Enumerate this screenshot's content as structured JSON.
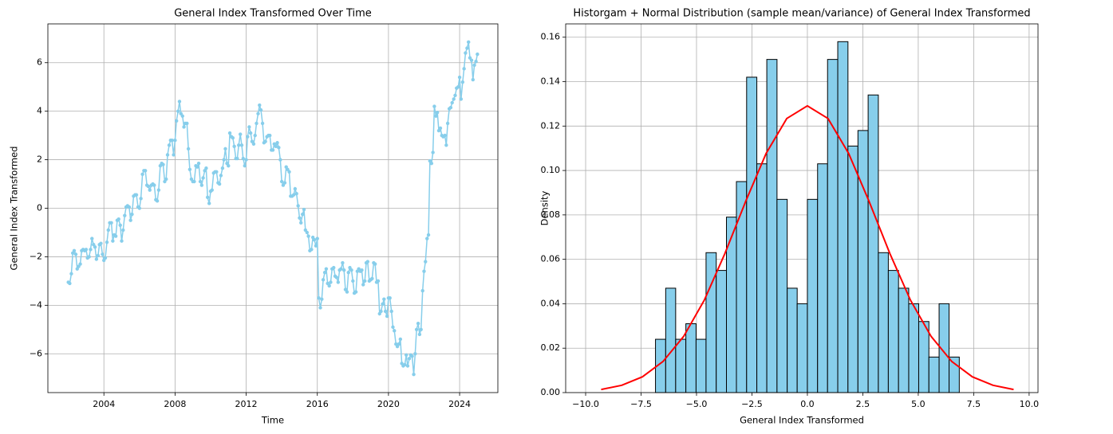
{
  "chart_data": [
    {
      "type": "line",
      "title": "General Index Transformed Over Time",
      "x_label": "Time",
      "y_label": "General Index Transformed",
      "color": "#87ceeb",
      "grid": true,
      "xlim": [
        2000.85,
        2026.15
      ],
      "xticks": [
        2004,
        2008,
        2012,
        2016,
        2020,
        2024
      ],
      "ylim": [
        -7.6,
        7.6
      ],
      "yticks": [
        {
          "value": -6,
          "label": "−6"
        },
        {
          "value": -4,
          "label": "−4"
        },
        {
          "value": -2,
          "label": "−2"
        },
        0,
        2,
        4,
        6
      ],
      "x": [
        2002.0,
        2002.08,
        2002.17,
        2002.25,
        2002.33,
        2002.42,
        2002.5,
        2002.58,
        2002.67,
        2002.75,
        2002.83,
        2002.92,
        2003.0,
        2003.08,
        2003.17,
        2003.25,
        2003.33,
        2003.42,
        2003.5,
        2003.58,
        2003.67,
        2003.75,
        2003.83,
        2003.92,
        2004.0,
        2004.08,
        2004.17,
        2004.25,
        2004.33,
        2004.42,
        2004.5,
        2004.58,
        2004.67,
        2004.75,
        2004.83,
        2004.92,
        2005.0,
        2005.08,
        2005.17,
        2005.25,
        2005.33,
        2005.42,
        2005.5,
        2005.58,
        2005.67,
        2005.75,
        2005.83,
        2005.92,
        2006.0,
        2006.08,
        2006.17,
        2006.25,
        2006.33,
        2006.42,
        2006.5,
        2006.58,
        2006.67,
        2006.75,
        2006.83,
        2006.92,
        2007.0,
        2007.08,
        2007.17,
        2007.25,
        2007.33,
        2007.42,
        2007.5,
        2007.58,
        2007.67,
        2007.75,
        2007.83,
        2007.92,
        2008.0,
        2008.08,
        2008.17,
        2008.25,
        2008.33,
        2008.42,
        2008.5,
        2008.58,
        2008.67,
        2008.75,
        2008.83,
        2008.92,
        2009.0,
        2009.08,
        2009.17,
        2009.25,
        2009.33,
        2009.42,
        2009.5,
        2009.58,
        2009.67,
        2009.75,
        2009.83,
        2009.92,
        2010.0,
        2010.08,
        2010.17,
        2010.25,
        2010.33,
        2010.42,
        2010.5,
        2010.58,
        2010.67,
        2010.75,
        2010.83,
        2010.92,
        2011.0,
        2011.08,
        2011.17,
        2011.25,
        2011.33,
        2011.42,
        2011.5,
        2011.58,
        2011.67,
        2011.75,
        2011.83,
        2011.92,
        2012.0,
        2012.08,
        2012.17,
        2012.25,
        2012.33,
        2012.42,
        2012.5,
        2012.58,
        2012.67,
        2012.75,
        2012.83,
        2012.92,
        2013.0,
        2013.08,
        2013.17,
        2013.25,
        2013.33,
        2013.42,
        2013.5,
        2013.58,
        2013.67,
        2013.75,
        2013.83,
        2013.92,
        2014.0,
        2014.08,
        2014.17,
        2014.25,
        2014.33,
        2014.42,
        2014.5,
        2014.58,
        2014.67,
        2014.75,
        2014.83,
        2014.92,
        2015.0,
        2015.08,
        2015.17,
        2015.25,
        2015.33,
        2015.42,
        2015.5,
        2015.58,
        2015.67,
        2015.75,
        2015.83,
        2015.92,
        2016.0,
        2016.08,
        2016.17,
        2016.25,
        2016.33,
        2016.42,
        2016.5,
        2016.58,
        2016.67,
        2016.75,
        2016.83,
        2016.92,
        2017.0,
        2017.08,
        2017.17,
        2017.25,
        2017.33,
        2017.42,
        2017.5,
        2017.58,
        2017.67,
        2017.75,
        2017.83,
        2017.92,
        2018.0,
        2018.08,
        2018.17,
        2018.25,
        2018.33,
        2018.42,
        2018.5,
        2018.58,
        2018.67,
        2018.75,
        2018.83,
        2018.92,
        2019.0,
        2019.08,
        2019.17,
        2019.25,
        2019.33,
        2019.42,
        2019.5,
        2019.58,
        2019.67,
        2019.75,
        2019.83,
        2019.92,
        2020.0,
        2020.08,
        2020.17,
        2020.25,
        2020.33,
        2020.42,
        2020.5,
        2020.58,
        2020.67,
        2020.75,
        2020.83,
        2020.92,
        2021.0,
        2021.08,
        2021.17,
        2021.25,
        2021.33,
        2021.42,
        2021.5,
        2021.58,
        2021.67,
        2021.75,
        2021.83,
        2021.92,
        2022.0,
        2022.08,
        2022.17,
        2022.25,
        2022.33,
        2022.42,
        2022.5,
        2022.58,
        2022.67,
        2022.75,
        2022.83,
        2022.92,
        2023.0,
        2023.08,
        2023.17,
        2023.25,
        2023.33,
        2023.42,
        2023.5,
        2023.58,
        2023.67,
        2023.75,
        2023.83,
        2023.92,
        2024.0,
        2024.08,
        2024.17,
        2024.25,
        2024.33,
        2024.42,
        2024.5,
        2024.58,
        2024.67,
        2024.75,
        2024.83,
        2024.92,
        2025.0
      ],
      "values": [
        -3.05,
        -3.1,
        -2.7,
        -1.85,
        -1.75,
        -1.9,
        -2.5,
        -2.4,
        -2.3,
        -1.75,
        -1.7,
        -1.75,
        -1.7,
        -2.05,
        -2.0,
        -1.7,
        -1.25,
        -1.5,
        -1.6,
        -2.1,
        -1.95,
        -1.5,
        -1.45,
        -1.9,
        -2.15,
        -2.05,
        -1.4,
        -0.9,
        -0.6,
        -0.6,
        -1.35,
        -1.1,
        -1.15,
        -0.5,
        -0.45,
        -0.7,
        -1.35,
        -0.9,
        -0.3,
        0.05,
        0.1,
        0.05,
        -0.5,
        -0.25,
        0.5,
        0.55,
        0.55,
        0.05,
        0.0,
        0.4,
        1.4,
        1.55,
        1.55,
        0.95,
        0.9,
        0.75,
        0.95,
        1.0,
        0.95,
        0.35,
        0.3,
        0.75,
        1.75,
        1.85,
        1.8,
        1.1,
        1.2,
        2.2,
        2.6,
        2.8,
        2.8,
        2.2,
        2.8,
        3.6,
        4.0,
        4.4,
        3.9,
        3.8,
        3.35,
        3.5,
        3.5,
        2.45,
        1.6,
        1.2,
        1.1,
        1.1,
        1.75,
        1.7,
        1.85,
        1.1,
        0.95,
        1.25,
        1.55,
        1.65,
        0.45,
        0.2,
        0.7,
        0.75,
        1.45,
        1.5,
        1.5,
        1.05,
        1.0,
        1.35,
        1.65,
        2.0,
        2.45,
        1.85,
        1.75,
        3.1,
        2.95,
        2.9,
        2.55,
        2.05,
        2.05,
        2.6,
        3.05,
        2.6,
        2.05,
        1.75,
        2.0,
        2.95,
        3.35,
        3.1,
        2.75,
        2.65,
        3.0,
        3.5,
        3.9,
        4.25,
        4.05,
        3.5,
        2.7,
        2.75,
        2.95,
        3.0,
        3.0,
        2.4,
        2.4,
        2.65,
        2.55,
        2.7,
        2.5,
        2.0,
        1.1,
        0.95,
        1.05,
        1.7,
        1.6,
        1.5,
        0.5,
        0.5,
        0.55,
        0.8,
        0.6,
        0.1,
        -0.4,
        -0.6,
        -0.25,
        -0.05,
        -0.9,
        -1.0,
        -1.15,
        -1.75,
        -1.7,
        -1.2,
        -1.3,
        -1.55,
        -1.25,
        -3.7,
        -4.1,
        -3.75,
        -2.95,
        -2.65,
        -2.5,
        -3.1,
        -3.2,
        -3.05,
        -2.5,
        -2.45,
        -2.8,
        -2.85,
        -3.05,
        -2.55,
        -2.5,
        -2.25,
        -2.55,
        -3.35,
        -3.45,
        -2.65,
        -2.45,
        -2.55,
        -3.0,
        -3.5,
        -3.45,
        -2.6,
        -2.5,
        -2.6,
        -2.55,
        -3.15,
        -3.0,
        -2.25,
        -2.2,
        -3.0,
        -2.95,
        -2.9,
        -2.25,
        -2.3,
        -3.05,
        -3.0,
        -4.35,
        -4.25,
        -3.95,
        -3.75,
        -4.25,
        -4.45,
        -3.7,
        -3.7,
        -4.25,
        -4.9,
        -5.05,
        -5.6,
        -5.7,
        -5.6,
        -5.4,
        -6.4,
        -6.5,
        -6.45,
        -6.05,
        -6.5,
        -6.2,
        -6.05,
        -6.1,
        -6.85,
        -6.0,
        -5.0,
        -4.75,
        -5.2,
        -5.0,
        -3.4,
        -2.6,
        -2.2,
        -1.25,
        -1.1,
        1.95,
        1.85,
        2.3,
        4.2,
        3.8,
        3.95,
        3.2,
        3.3,
        3.0,
        2.95,
        3.0,
        2.6,
        3.5,
        4.1,
        4.15,
        4.35,
        4.5,
        4.65,
        4.95,
        5.0,
        5.4,
        4.5,
        5.2,
        5.75,
        6.4,
        6.6,
        6.85,
        6.2,
        6.1,
        5.3,
        5.9,
        6.05,
        6.35
      ]
    },
    {
      "type": "histogram",
      "title": "Historgam + Normal Distribution (sample mean/variance) of General Index Transformed",
      "x_label": "General Index Transformed",
      "y_label": "Density",
      "color": "#87ceeb",
      "edge_color": "#000000",
      "grid": true,
      "xlim": [
        -10.9,
        10.4
      ],
      "xticks": [
        {
          "value": -10,
          "label": "−10.0"
        },
        {
          "value": -7.5,
          "label": "−7.5"
        },
        {
          "value": -5,
          "label": "−5.0"
        },
        {
          "value": -2.5,
          "label": "−2.5"
        },
        {
          "value": 0,
          "label": "0.0"
        },
        {
          "value": 2.5,
          "label": "2.5"
        },
        {
          "value": 5,
          "label": "5.0"
        },
        {
          "value": 7.5,
          "label": "7.5"
        },
        {
          "value": 10,
          "label": "10.0"
        }
      ],
      "ylim": [
        0,
        0.166
      ],
      "yticks": [
        {
          "value": 0,
          "label": "0.00"
        },
        0.02,
        0.04,
        0.06,
        0.08,
        {
          "value": 0.1,
          "label": "0.10"
        },
        0.12,
        0.14,
        0.16
      ],
      "bins": [
        -6.85,
        -6.39,
        -5.94,
        -5.48,
        -5.02,
        -4.57,
        -4.11,
        -3.65,
        -3.2,
        -2.74,
        -2.28,
        -1.83,
        -1.37,
        -0.91,
        -0.46,
        0,
        0.46,
        0.91,
        1.37,
        1.83,
        2.28,
        2.74,
        3.2,
        3.65,
        4.11,
        4.57,
        5.02,
        5.48,
        5.94,
        6.39,
        6.85
      ],
      "values": [
        0.024,
        0.047,
        0.024,
        0.031,
        0.024,
        0.063,
        0.055,
        0.079,
        0.095,
        0.142,
        0.103,
        0.15,
        0.087,
        0.047,
        0.04,
        0.087,
        0.103,
        0.15,
        0.158,
        0.111,
        0.118,
        0.134,
        0.063,
        0.055,
        0.047,
        0.04,
        0.032,
        0.016,
        0.04,
        0.016
      ],
      "curve": {
        "color": "#ff0000",
        "x": [
          -9.3,
          -8.37,
          -7.44,
          -6.51,
          -5.58,
          -4.65,
          -3.72,
          -2.79,
          -1.86,
          -0.93,
          0,
          0.93,
          1.86,
          2.79,
          3.72,
          4.65,
          5.58,
          6.51,
          7.44,
          8.37,
          9.3
        ],
        "values": [
          0.0014,
          0.0033,
          0.0071,
          0.014,
          0.0253,
          0.0416,
          0.0626,
          0.0859,
          0.1077,
          0.1234,
          0.1291,
          0.1234,
          0.1077,
          0.0859,
          0.0626,
          0.0416,
          0.0253,
          0.014,
          0.0071,
          0.0033,
          0.0014
        ]
      }
    }
  ]
}
